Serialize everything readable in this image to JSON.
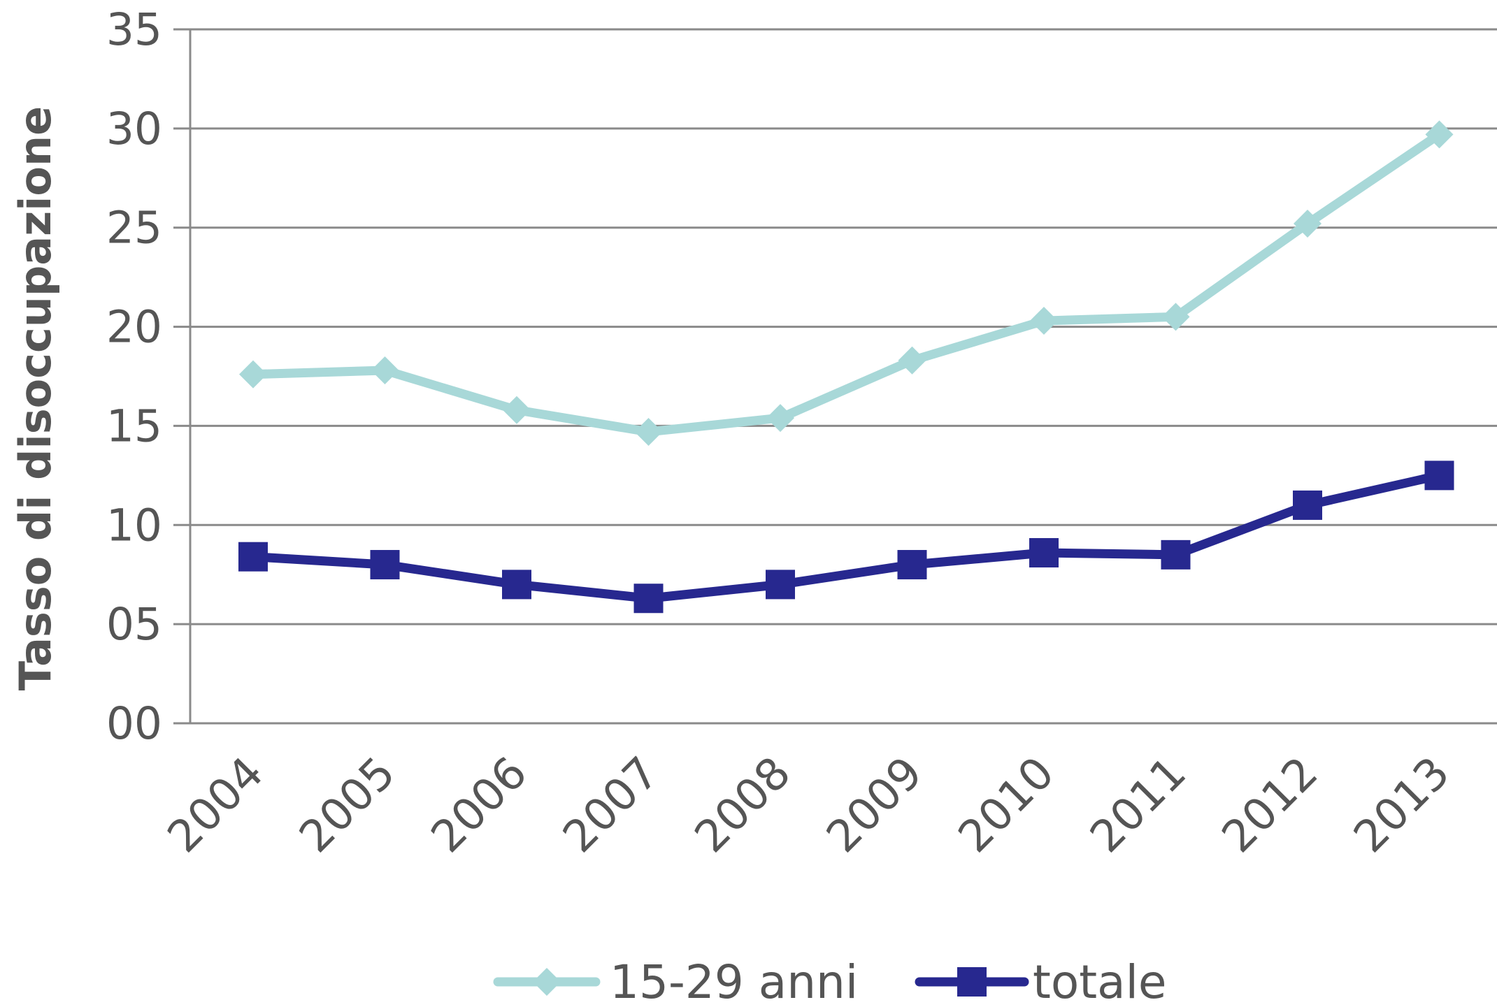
{
  "chart_data": {
    "type": "line",
    "ylabel": "Tasso  di disoccupazione",
    "xlabel": "",
    "categories": [
      "2004",
      "2005",
      "2006",
      "2007",
      "2008",
      "2009",
      "2010",
      "2011",
      "2012",
      "2013"
    ],
    "ylim": [
      0,
      35
    ],
    "yticks": [
      0,
      5,
      10,
      15,
      20,
      25,
      30,
      35
    ],
    "ytick_labels": [
      "00",
      "05",
      "10",
      "15",
      "20",
      "25",
      "30",
      "35"
    ],
    "grid": true,
    "legend_position": "bottom",
    "series": [
      {
        "name": "15-29 anni",
        "marker": "diamond",
        "color": "#a8d8d8",
        "values": [
          17.6,
          17.8,
          15.8,
          14.7,
          15.4,
          18.3,
          20.3,
          20.5,
          25.2,
          29.7
        ]
      },
      {
        "name": "totale",
        "marker": "square",
        "color": "#27288f",
        "values": [
          8.4,
          8.0,
          7.0,
          6.3,
          7.0,
          8.0,
          8.6,
          8.5,
          11.0,
          12.5
        ]
      }
    ]
  },
  "colors": {
    "grid": "#8a8a8a",
    "axis": "#8a8a8a",
    "text": "#555555"
  }
}
